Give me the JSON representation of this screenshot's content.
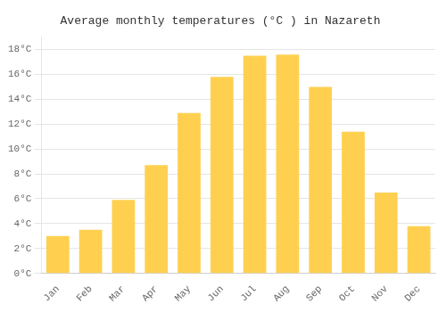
{
  "chart_data": {
    "type": "bar",
    "title": "Average monthly temperatures (°C ) in Nazareth",
    "categories": [
      "Jan",
      "Feb",
      "Mar",
      "Apr",
      "May",
      "Jun",
      "Jul",
      "Aug",
      "Sep",
      "Oct",
      "Nov",
      "Dec"
    ],
    "values": [
      3.0,
      3.5,
      5.9,
      8.7,
      12.9,
      15.8,
      17.5,
      17.6,
      15.0,
      11.4,
      6.5,
      3.8
    ],
    "color": "#FFD050",
    "ylim": [
      0,
      19
    ],
    "yticks": [
      {
        "value": 0,
        "label": "0°C"
      },
      {
        "value": 2,
        "label": "2°C"
      },
      {
        "value": 4,
        "label": "4°C"
      },
      {
        "value": 6,
        "label": "6°C"
      },
      {
        "value": 8,
        "label": "8°C"
      },
      {
        "value": 10,
        "label": "10°C"
      },
      {
        "value": 12,
        "label": "12°C"
      },
      {
        "value": 14,
        "label": "14°C"
      },
      {
        "value": 16,
        "label": "16°C"
      },
      {
        "value": 18,
        "label": "18°C"
      }
    ],
    "grid": true
  }
}
